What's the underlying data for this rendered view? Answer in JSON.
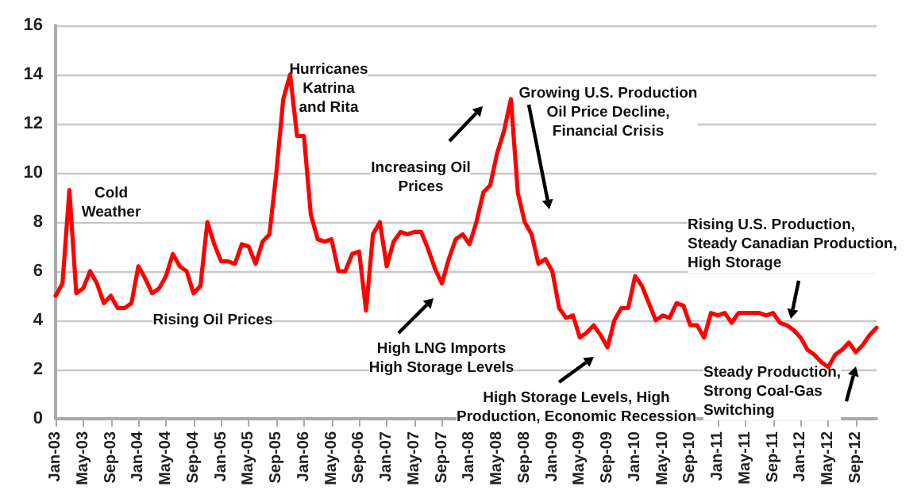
{
  "chart_data": {
    "type": "line",
    "categories": [
      "Jan-03",
      null,
      null,
      null,
      "May-03",
      null,
      null,
      null,
      "Sep-03",
      null,
      null,
      null,
      "Jan-04",
      null,
      null,
      null,
      "May-04",
      null,
      null,
      null,
      "Sep-04",
      null,
      null,
      null,
      "Jan-05",
      null,
      null,
      null,
      "May-05",
      null,
      null,
      null,
      "Sep-05",
      null,
      null,
      null,
      "Jan-06",
      null,
      null,
      null,
      "May-06",
      null,
      null,
      null,
      "Sep-06",
      null,
      null,
      null,
      "Jan-07",
      null,
      null,
      null,
      "May-07",
      null,
      null,
      null,
      "Sep-07",
      null,
      null,
      null,
      "Jan-08",
      null,
      null,
      null,
      "May-08",
      null,
      null,
      null,
      "Sep-08",
      null,
      null,
      null,
      "Jan-09",
      null,
      null,
      null,
      "May-09",
      null,
      null,
      null,
      "Sep-09",
      null,
      null,
      null,
      "Jan-10",
      null,
      null,
      null,
      "May-10",
      null,
      null,
      null,
      "Sep-10",
      null,
      null,
      null,
      "Jan-11",
      null,
      null,
      null,
      "May-11",
      null,
      null,
      null,
      "Sep-11",
      null,
      null,
      null,
      "Jan-12",
      null,
      null,
      null,
      "May-12",
      null,
      null,
      null,
      "Sep-12",
      null,
      null,
      null
    ],
    "series": [
      {
        "color": "#ff0000",
        "values": [
          5.0,
          5.5,
          9.3,
          5.1,
          5.3,
          6.0,
          5.5,
          4.7,
          5.0,
          4.5,
          4.5,
          4.7,
          6.2,
          5.7,
          5.1,
          5.3,
          5.8,
          6.7,
          6.2,
          6.0,
          5.1,
          5.4,
          8.0,
          7.1,
          6.4,
          6.4,
          6.3,
          7.1,
          7.0,
          6.3,
          7.2,
          7.5,
          10.0,
          13.0,
          14.0,
          11.5,
          11.5,
          8.3,
          7.3,
          7.2,
          7.3,
          6.0,
          6.0,
          6.7,
          6.8,
          4.4,
          7.5,
          8.0,
          6.2,
          7.2,
          7.6,
          7.5,
          7.6,
          7.6,
          6.9,
          6.1,
          5.5,
          6.5,
          7.3,
          7.5,
          7.1,
          8.0,
          9.2,
          9.5,
          10.8,
          11.7,
          13.0,
          9.2,
          8.0,
          7.5,
          6.3,
          6.5,
          6.0,
          4.5,
          4.1,
          4.2,
          3.3,
          3.5,
          3.8,
          3.4,
          2.9,
          4.0,
          4.5,
          4.5,
          5.8,
          5.4,
          4.7,
          4.0,
          4.2,
          4.1,
          4.7,
          4.6,
          3.8,
          3.8,
          3.3,
          4.3,
          4.2,
          4.3,
          3.9,
          4.3,
          4.3,
          4.3,
          4.3,
          4.2,
          4.3,
          3.9,
          3.8,
          3.6,
          3.3,
          2.8,
          2.6,
          2.3,
          2.1,
          2.6,
          2.8,
          3.1,
          2.7,
          3.0,
          3.4,
          3.7
        ]
      }
    ],
    "ylim": [
      0,
      16
    ],
    "yticks": [
      0,
      2,
      4,
      6,
      8,
      10,
      12,
      14,
      16
    ],
    "grid": "y",
    "marker": "none",
    "line_style": "solid",
    "annotations": [
      "Cold\nWeather",
      "Rising Oil Prices",
      "Hurricanes\nKatrina\nand Rita",
      "Increasing Oil\nPrices",
      "High LNG Imports\nHigh Storage Levels",
      "Growing U.S. Production\nOil Price Decline,\nFinancial Crisis",
      "High Storage Levels, High\nProduction, Economic Recession",
      "Rising U.S. Production,\nSteady Canadian Production,\nHigh Storage",
      "Steady Production,\nStrong Coal-Gas\nSwitching"
    ]
  }
}
